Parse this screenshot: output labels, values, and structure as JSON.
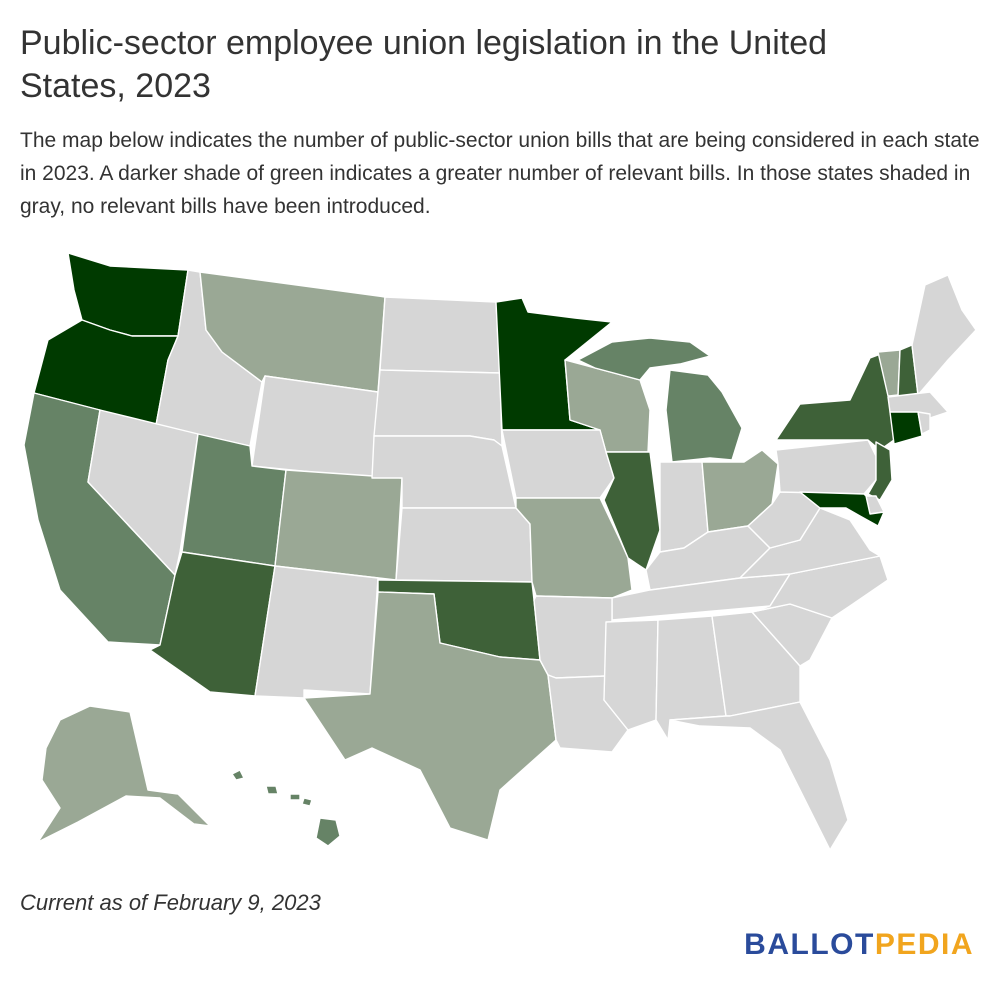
{
  "title": "Public-sector employee union legislation in the United States, 2023",
  "description": "The map below indicates the number of public-sector union bills that are being considered in each state in 2023. A darker shade of green indicates a greater number of relevant bills. In those states shaded in gray, no relevant bills have been introduced.",
  "footnote": "Current as of February 9, 2023",
  "logo": {
    "part1": "BALLOT",
    "part2": "PEDIA",
    "color1": "#2a4b9b",
    "color2": "#f1a51e"
  },
  "colors": {
    "none": "#d6d6d6",
    "light": "#9aa895",
    "medium": "#668366",
    "dark": "#3e6138",
    "darkest": "#003a00"
  },
  "states": {
    "WA": "darkest",
    "OR": "darkest",
    "MN": "darkest",
    "MD": "darkest",
    "CT": "darkest",
    "AZ": "dark",
    "OK": "dark",
    "IL": "dark",
    "NY": "dark",
    "NH": "dark",
    "NJ": "dark",
    "CA": "medium",
    "UT": "medium",
    "MI": "medium",
    "HI": "medium",
    "MT": "light",
    "CO": "light",
    "TX": "light",
    "WI": "light",
    "MO": "light",
    "OH": "light",
    "VT": "light",
    "AK": "light",
    "ID": "none",
    "NV": "none",
    "WY": "none",
    "NM": "none",
    "ND": "none",
    "SD": "none",
    "NE": "none",
    "KS": "none",
    "IA": "none",
    "AR": "none",
    "LA": "none",
    "MS": "none",
    "AL": "none",
    "TN": "none",
    "KY": "none",
    "IN": "none",
    "GA": "none",
    "FL": "none",
    "SC": "none",
    "NC": "none",
    "VA": "none",
    "WV": "none",
    "PA": "none",
    "DE": "none",
    "MA": "none",
    "RI": "none",
    "ME": "none"
  }
}
